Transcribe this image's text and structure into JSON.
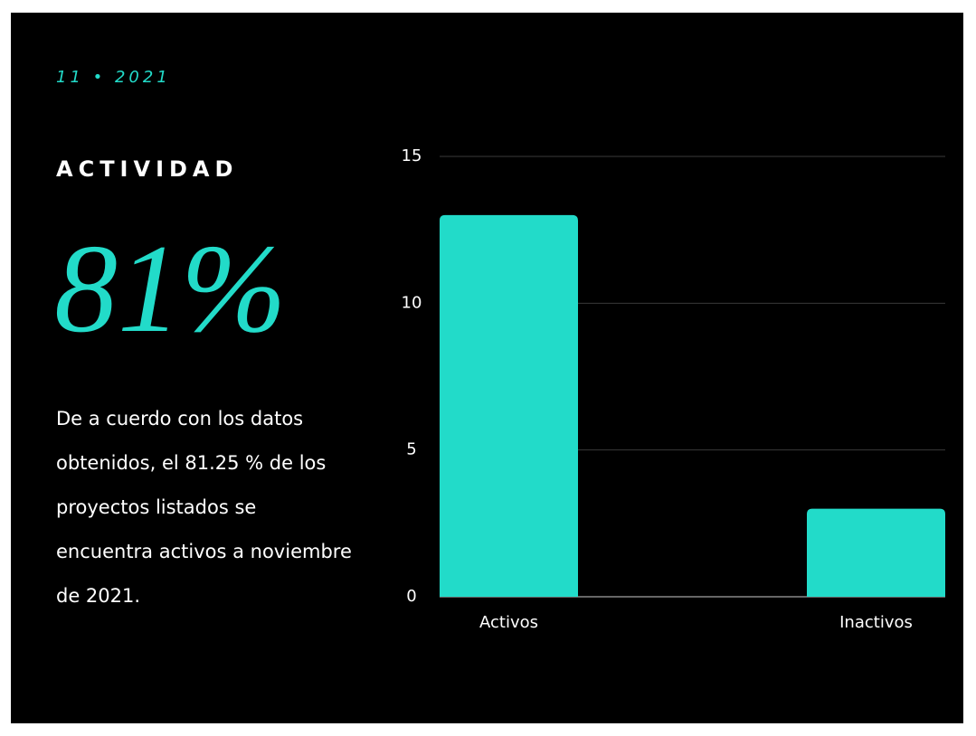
{
  "header": {
    "date": "11 • 2021",
    "title": "ACTIVIDAD",
    "highlight": "81%"
  },
  "paragraph": {
    "lines": [
      "De a cuerdo con los datos",
      "obtenidos, el 81.25 % de los",
      "proyectos listados se",
      "encuentra activos a noviembre",
      "de 2021."
    ]
  },
  "chart_data": {
    "type": "bar",
    "categories": [
      "Activos",
      "Inactivos"
    ],
    "values": [
      13,
      3
    ],
    "color": "#22dbc9",
    "ylim": [
      0,
      15
    ],
    "yticks": [
      0,
      5,
      10,
      15
    ],
    "grid": true
  }
}
